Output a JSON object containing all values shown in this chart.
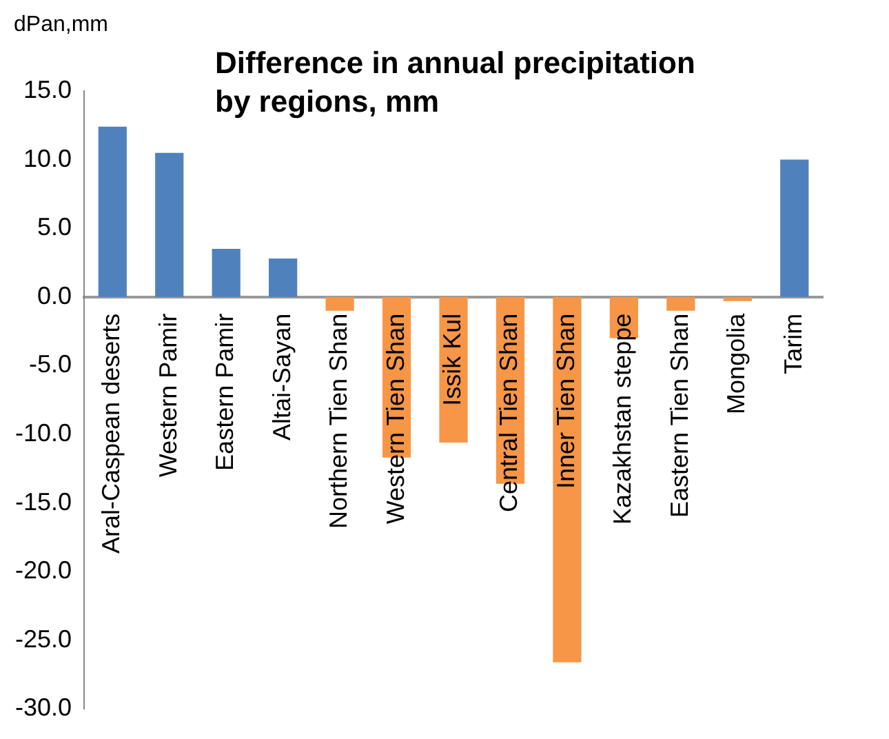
{
  "chart_data": {
    "type": "bar",
    "title": "Difference in annual precipitation by regions, mm",
    "ylabel": "dPan,mm",
    "categories": [
      "Aral-Caspean deserts",
      "Western Pamir",
      "Eastern Pamir",
      "Altai-Sayan",
      "Northern Tien Shan",
      "Western Tien Shan",
      "Issik Kul",
      "Central Tien Shan",
      "Inner Tien Shan",
      "Kazakhstan steppe",
      "Eastern Tien Shan",
      "Mongolia",
      "Tarim"
    ],
    "values": [
      12.4,
      10.5,
      3.5,
      2.8,
      -1.0,
      -11.7,
      -10.6,
      -13.6,
      -26.6,
      -3.0,
      -1.0,
      -0.3,
      10.0
    ],
    "colors": [
      "#4f81bd",
      "#4f81bd",
      "#4f81bd",
      "#4f81bd",
      "#f79646",
      "#f79646",
      "#f79646",
      "#f79646",
      "#f79646",
      "#f79646",
      "#f79646",
      "#f79646",
      "#4f81bd"
    ],
    "ylim": [
      -30,
      15
    ],
    "yticks": [
      {
        "value": -30,
        "label": "-30.0"
      },
      {
        "value": -25,
        "label": "-25.0"
      },
      {
        "value": -20,
        "label": "-20.0"
      },
      {
        "value": -15,
        "label": "-15.0"
      },
      {
        "value": -10,
        "label": "-10.0"
      },
      {
        "value": -5,
        "label": "-5.0"
      },
      {
        "value": 0,
        "label": "0.0"
      },
      {
        "value": 5,
        "label": "5.0"
      },
      {
        "value": 10,
        "label": "10.0"
      },
      {
        "value": 15,
        "label": "15.0"
      }
    ],
    "grid": false,
    "legend": false
  }
}
